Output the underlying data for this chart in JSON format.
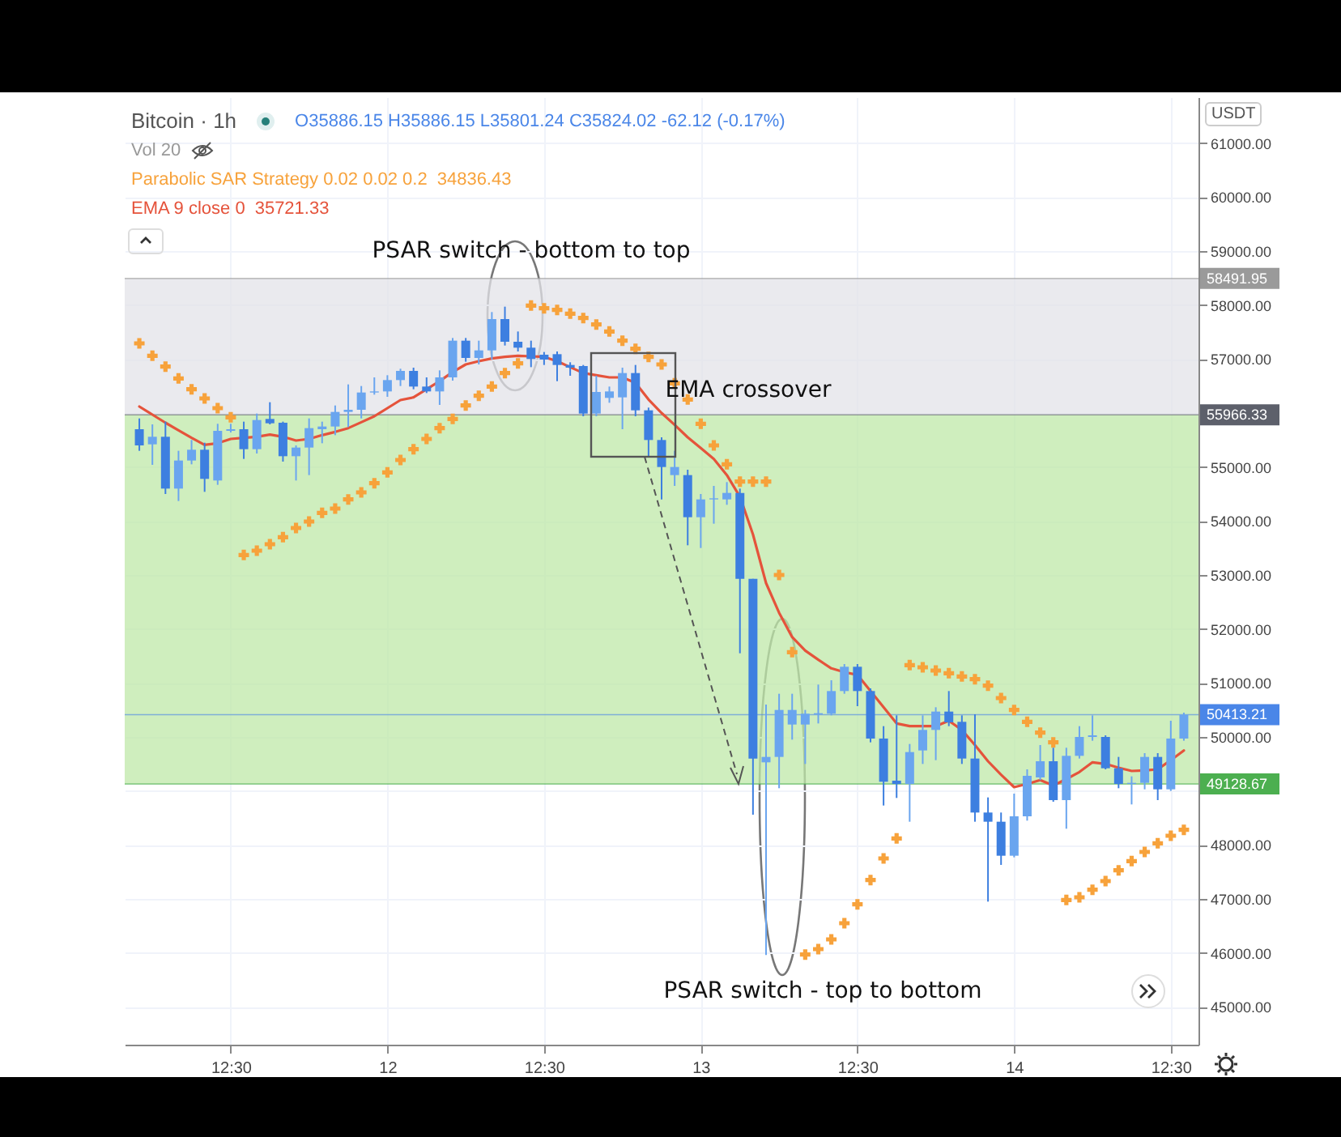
{
  "chart_data": {
    "type": "candlestick",
    "title": "Bitcoin · 1h",
    "subtitle": "O35886.15 H35886.15 L35801.24 C35824.02 -62.12 (-0.17%)",
    "ylabel": "USDT",
    "annotations": [
      "Vol 20",
      "34836.43",
      "35721.33",
      "PSAR switch - bottom to top",
      "EMA crossover",
      "PSAR switch - top to bottom"
    ],
    "categories": [
      null,
      null,
      null,
      null,
      null,
      null,
      null,
      "12:30",
      null,
      null,
      null,
      null,
      null,
      null,
      null,
      null,
      null,
      null,
      null,
      "12",
      null,
      null,
      null,
      null,
      null,
      null,
      null,
      null,
      null,
      null,
      null,
      "12:30",
      null,
      null,
      null,
      null,
      null,
      null,
      null,
      null,
      null,
      null,
      null,
      "13",
      null,
      null,
      null,
      null,
      null,
      null,
      null,
      null,
      null,
      null,
      null,
      "12:30",
      null,
      null,
      null,
      null,
      null,
      null,
      null,
      null,
      null,
      null,
      null,
      "14",
      null,
      null,
      null,
      null,
      null,
      null,
      null,
      null,
      null,
      null,
      null,
      "12:30",
      null
    ],
    "ylim": [
      44300,
      61850
    ],
    "yticks": [
      {
        "value": 45000,
        "label": "45000.00"
      },
      {
        "value": 46000,
        "label": "46000.00"
      },
      {
        "value": 47000,
        "label": "47000.00"
      },
      {
        "value": 48000,
        "label": "48000.00"
      },
      {
        "value": 49000,
        "label": null
      },
      {
        "value": 50000,
        "label": "50000.00"
      },
      {
        "value": 51000,
        "label": "51000.00"
      },
      {
        "value": 52000,
        "label": "52000.00"
      },
      {
        "value": 53000,
        "label": "53000.00"
      },
      {
        "value": 54000,
        "label": "54000.00"
      },
      {
        "value": 55000,
        "label": "55000.00"
      },
      {
        "value": 56000,
        "label": null
      },
      {
        "value": 57000,
        "label": "57000.00"
      },
      {
        "value": 58000,
        "label": "58000.00"
      },
      {
        "value": 59000,
        "label": "59000.00"
      },
      {
        "value": 60000,
        "label": "60000.00"
      },
      {
        "value": 61000,
        "label": "61000.00"
      }
    ],
    "grid": true,
    "legend": "top left",
    "bands": [
      {
        "axis": "y",
        "from": 55966.33,
        "to": 58491.95,
        "color": "#e3e3e8"
      },
      {
        "axis": "y",
        "from": 49128.67,
        "to": 55966.33,
        "color": "#bfe8a8"
      }
    ],
    "ref_lines": [
      {
        "axis": "y",
        "value": 58491.95,
        "label": "58491.95",
        "color": "#9a9a9a"
      },
      {
        "axis": "y",
        "value": 55966.33,
        "label": "55966.33",
        "color": "#5d606b"
      },
      {
        "axis": "y",
        "value": 50413.21,
        "label": "50413.21",
        "color": "#4a86e8"
      },
      {
        "axis": "y",
        "value": 49128.67,
        "label": "49128.67",
        "color": "#4caf50"
      }
    ],
    "series": [
      {
        "type": "scatter",
        "name": "Parabolic SAR Strategy 0.02 0.02 0.2",
        "color": "#f7a23b",
        "marker": "cross",
        "values": [
          57290,
          57060,
          56860,
          56640,
          56440,
          56270,
          56090,
          55920,
          53370,
          53450,
          53570,
          53700,
          53870,
          53990,
          54150,
          54230,
          54400,
          54530,
          54700,
          54900,
          55130,
          55330,
          55520,
          55720,
          55890,
          56140,
          56320,
          56490,
          56740,
          56920,
          57990,
          57940,
          57910,
          57840,
          57760,
          57640,
          57510,
          57340,
          57190,
          57040,
          56900,
          56550,
          56250,
          55800,
          55400,
          55050,
          54730,
          54730,
          54730,
          53000,
          51570,
          45970,
          46070,
          46250,
          46550,
          46900,
          47350,
          47750,
          48120,
          51330,
          51290,
          51230,
          51180,
          51120,
          51070,
          50950,
          50720,
          50500,
          50280,
          50080,
          49900,
          46980,
          47030,
          47170,
          47330,
          47530,
          47700,
          47870,
          48030,
          48170,
          48280
        ]
      },
      {
        "type": "line",
        "name": "EMA 9 close 0",
        "color": "#e5533b",
        "values": [
          56120,
          55970,
          55820,
          55680,
          55540,
          55410,
          55440,
          55520,
          55540,
          55560,
          55600,
          55560,
          55490,
          55520,
          55590,
          55650,
          55720,
          55830,
          55940,
          56090,
          56240,
          56290,
          56440,
          56590,
          56760,
          56900,
          56960,
          57010,
          57040,
          57060,
          57050,
          57040,
          56960,
          56850,
          56740,
          56700,
          56660,
          56660,
          56560,
          56250,
          56000,
          55780,
          55550,
          55350,
          55150,
          54850,
          54450,
          53750,
          52850,
          52300,
          51850,
          51600,
          51430,
          51270,
          51200,
          51150,
          50850,
          50550,
          50250,
          50200,
          50200,
          50200,
          50300,
          50130,
          49850,
          49550,
          49300,
          49070,
          49130,
          49200,
          49100,
          49220,
          49350,
          49530,
          49500,
          49430,
          49370,
          49380,
          49400,
          49570,
          49750
        ]
      },
      {
        "ohlc": [
          [
            55700,
            55900,
            55300,
            55400
          ],
          [
            55420,
            55790,
            55040,
            55560
          ],
          [
            55560,
            55840,
            54500,
            54600
          ],
          [
            54600,
            55300,
            54370,
            55120
          ],
          [
            55120,
            55500,
            55050,
            55320
          ],
          [
            55320,
            55450,
            54540,
            54780
          ],
          [
            54750,
            55800,
            54670,
            55670
          ],
          [
            55670,
            55800,
            55640,
            55700
          ],
          [
            55700,
            55840,
            55150,
            55330
          ],
          [
            55330,
            55990,
            55250,
            55870
          ],
          [
            55890,
            56200,
            55790,
            55810
          ],
          [
            55820,
            55840,
            55100,
            55200
          ],
          [
            55200,
            55400,
            54750,
            55360
          ],
          [
            55360,
            55900,
            54850,
            55720
          ],
          [
            55700,
            55840,
            55440,
            55750
          ],
          [
            55750,
            56140,
            55590,
            56020
          ],
          [
            56020,
            56530,
            55740,
            56060
          ],
          [
            56060,
            56500,
            55900,
            56380
          ],
          [
            56380,
            56660,
            56340,
            56400
          ],
          [
            56400,
            56700,
            56300,
            56610
          ],
          [
            56610,
            56820,
            56500,
            56780
          ],
          [
            56780,
            56840,
            56440,
            56490
          ],
          [
            56490,
            56660,
            56370,
            56400
          ],
          [
            56400,
            56790,
            56150,
            56660
          ],
          [
            56660,
            57390,
            56600,
            57340
          ],
          [
            57340,
            57390,
            56950,
            57020
          ],
          [
            57020,
            57340,
            56900,
            57160
          ],
          [
            57160,
            57870,
            56990,
            57740
          ],
          [
            57740,
            57970,
            57250,
            57320
          ],
          [
            57320,
            57510,
            57140,
            57210
          ],
          [
            57210,
            57340,
            56850,
            57000
          ],
          [
            57080,
            57130,
            56890,
            56990
          ],
          [
            57090,
            57140,
            56590,
            56890
          ],
          [
            56890,
            56940,
            56690,
            56840
          ],
          [
            56870,
            56890,
            55940,
            55990
          ],
          [
            55990,
            56690,
            55940,
            56390
          ],
          [
            56280,
            56490,
            56190,
            56400
          ],
          [
            56290,
            56840,
            55700,
            56740
          ],
          [
            56740,
            56890,
            55940,
            56050
          ],
          [
            56050,
            56100,
            55200,
            55500
          ],
          [
            55500,
            55550,
            54400,
            55000
          ],
          [
            54850,
            55300,
            54650,
            55000
          ],
          [
            54850,
            54950,
            53550,
            54070
          ],
          [
            54070,
            54500,
            53500,
            54400
          ],
          [
            54400,
            54650,
            53950,
            54420
          ],
          [
            54400,
            54720,
            54300,
            54520
          ],
          [
            54520,
            54600,
            51550,
            52930
          ],
          [
            52930,
            52930,
            48560,
            49600
          ],
          [
            49530,
            50600,
            45960,
            49630
          ],
          [
            49630,
            50800,
            49050,
            50500
          ],
          [
            50230,
            50800,
            49950,
            50500
          ],
          [
            50230,
            50500,
            49500,
            50430
          ],
          [
            50420,
            50970,
            50250,
            50440
          ],
          [
            50430,
            51050,
            50400,
            50850
          ],
          [
            50850,
            51350,
            50800,
            51300
          ],
          [
            51300,
            51350,
            50570,
            50850
          ],
          [
            50850,
            50900,
            49900,
            49970
          ],
          [
            49970,
            50200,
            48730,
            49170
          ],
          [
            49190,
            50400,
            48870,
            49130
          ],
          [
            49130,
            49870,
            48430,
            49720
          ],
          [
            49750,
            50400,
            49500,
            50130
          ],
          [
            50130,
            50550,
            49570,
            50470
          ],
          [
            50470,
            50850,
            50200,
            50270
          ],
          [
            50280,
            50400,
            49500,
            49600
          ],
          [
            49600,
            50420,
            48430,
            48600
          ],
          [
            48600,
            48880,
            46950,
            48430
          ],
          [
            48430,
            48600,
            47630,
            47800
          ],
          [
            47800,
            48950,
            47770,
            48530
          ],
          [
            48530,
            49400,
            48450,
            49280
          ],
          [
            49250,
            49850,
            49200,
            49550
          ],
          [
            49550,
            49800,
            48800,
            48830
          ],
          [
            48830,
            49800,
            48300,
            49650
          ],
          [
            49650,
            50200,
            49600,
            50000
          ],
          [
            50000,
            50400,
            49930,
            50030
          ],
          [
            50000,
            50030,
            49400,
            49420
          ],
          [
            49420,
            49630,
            49050,
            49130
          ],
          [
            49130,
            49270,
            48750,
            49150
          ],
          [
            49150,
            49700,
            49030,
            49630
          ],
          [
            49630,
            49700,
            48830,
            49030
          ],
          [
            49030,
            50300,
            49000,
            49970
          ],
          [
            49970,
            50450,
            49930,
            50410
          ]
        ],
        "colors": [
          "#3d7fe0",
          "#6aa5ef",
          "#3d7fe0",
          "#6aa5ef",
          "#6aa5ef",
          "#3d7fe0",
          "#6aa5ef",
          "#6aa5ef",
          "#3d7fe0",
          "#6aa5ef",
          "#3d7fe0",
          "#3d7fe0",
          "#6aa5ef",
          "#6aa5ef",
          "#6aa5ef",
          "#6aa5ef",
          "#6aa5ef",
          "#6aa5ef",
          "#6aa5ef",
          "#6aa5ef",
          "#6aa5ef",
          "#3d7fe0",
          "#3d7fe0",
          "#6aa5ef",
          "#6aa5ef",
          "#3d7fe0",
          "#6aa5ef",
          "#6aa5ef",
          "#3d7fe0",
          "#3d7fe0",
          "#3d7fe0",
          "#3d7fe0",
          "#3d7fe0",
          "#3d7fe0",
          "#3d7fe0",
          "#6aa5ef",
          "#6aa5ef",
          "#6aa5ef",
          "#3d7fe0",
          "#3d7fe0",
          "#3d7fe0",
          "#6aa5ef",
          "#3d7fe0",
          "#6aa5ef",
          "#6aa5ef",
          "#6aa5ef",
          "#3d7fe0",
          "#3d7fe0",
          "#6aa5ef",
          "#6aa5ef",
          "#6aa5ef",
          "#6aa5ef",
          "#6aa5ef",
          "#6aa5ef",
          "#6aa5ef",
          "#3d7fe0",
          "#3d7fe0",
          "#3d7fe0",
          "#3d7fe0",
          "#6aa5ef",
          "#6aa5ef",
          "#6aa5ef",
          "#3d7fe0",
          "#3d7fe0",
          "#3d7fe0",
          "#3d7fe0",
          "#3d7fe0",
          "#6aa5ef",
          "#6aa5ef",
          "#6aa5ef",
          "#3d7fe0",
          "#6aa5ef",
          "#6aa5ef",
          "#6aa5ef",
          "#3d7fe0",
          "#3d7fe0",
          "#6aa5ef",
          "#6aa5ef",
          "#3d7fe0",
          "#6aa5ef",
          "#6aa5ef"
        ]
      }
    ]
  }
}
